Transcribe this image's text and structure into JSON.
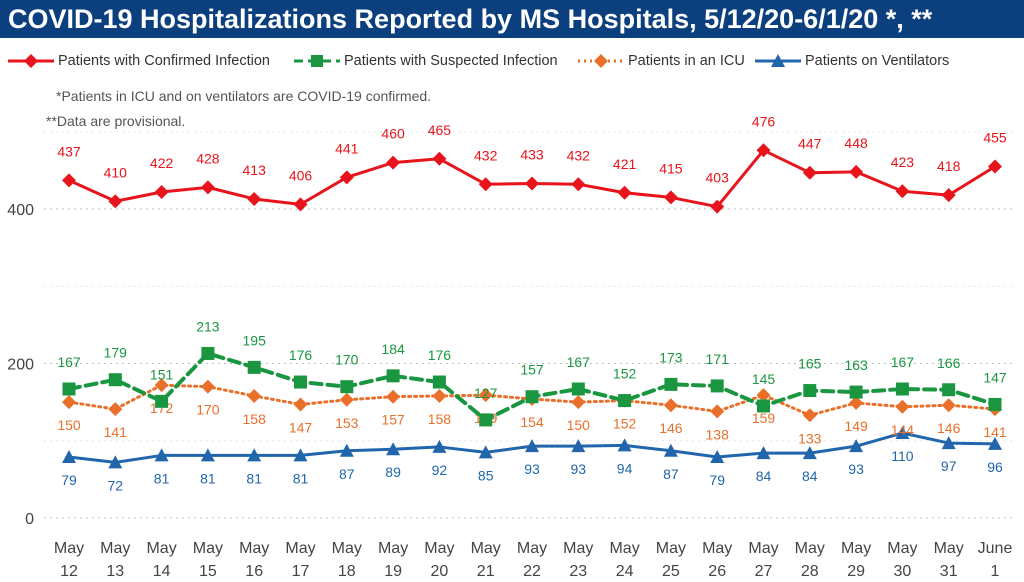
{
  "title": "COVID-19 Hospitalizations Reported by MS Hospitals, 5/12/20-6/1/20 *, **",
  "notes": [
    "*Patients in ICU and on ventilators are COVID-19 confirmed.",
    "**Data are provisional."
  ],
  "colors": {
    "confirmed": "#e8141b",
    "suspected": "#1a9641",
    "icu": "#e8702a",
    "ventilators": "#2166ac",
    "title_bg": "#0b3f7e"
  },
  "chart_data": {
    "type": "line",
    "x": [
      [
        "May",
        "12"
      ],
      [
        "May",
        "13"
      ],
      [
        "May",
        "14"
      ],
      [
        "May",
        "15"
      ],
      [
        "May",
        "16"
      ],
      [
        "May",
        "17"
      ],
      [
        "May",
        "18"
      ],
      [
        "May",
        "19"
      ],
      [
        "May",
        "20"
      ],
      [
        "May",
        "21"
      ],
      [
        "May",
        "22"
      ],
      [
        "May",
        "23"
      ],
      [
        "May",
        "24"
      ],
      [
        "May",
        "25"
      ],
      [
        "May",
        "26"
      ],
      [
        "May",
        "27"
      ],
      [
        "May",
        "28"
      ],
      [
        "May",
        "29"
      ],
      [
        "May",
        "30"
      ],
      [
        "May",
        "31"
      ],
      [
        "June",
        "1"
      ]
    ],
    "ylim": [
      0,
      500
    ],
    "yticks": [
      0,
      200,
      400
    ],
    "grid": true,
    "legend_position": "top",
    "series": [
      {
        "name": "Patients with Confirmed Infection",
        "key": "confirmed",
        "marker": "diamond",
        "style": "solid",
        "values": [
          437,
          410,
          422,
          428,
          413,
          406,
          441,
          460,
          465,
          432,
          433,
          432,
          421,
          415,
          403,
          476,
          447,
          448,
          423,
          418,
          455
        ]
      },
      {
        "name": "Patients with Suspected Infection",
        "key": "suspected",
        "marker": "square",
        "style": "dashed",
        "values": [
          167,
          179,
          151,
          213,
          195,
          176,
          170,
          184,
          176,
          127,
          157,
          167,
          152,
          173,
          171,
          145,
          165,
          163,
          167,
          166,
          147
        ]
      },
      {
        "name": "Patients in an ICU",
        "key": "icu",
        "marker": "diamond",
        "style": "dotted",
        "values": [
          150,
          141,
          172,
          170,
          158,
          147,
          153,
          157,
          158,
          159,
          154,
          150,
          152,
          146,
          138,
          159,
          133,
          149,
          144,
          146,
          141
        ]
      },
      {
        "name": "Patients on Ventilators",
        "key": "ventilators",
        "marker": "triangle",
        "style": "solid",
        "values": [
          79,
          72,
          81,
          81,
          81,
          81,
          87,
          89,
          92,
          85,
          93,
          93,
          94,
          87,
          79,
          84,
          84,
          93,
          110,
          97,
          96
        ]
      }
    ]
  }
}
